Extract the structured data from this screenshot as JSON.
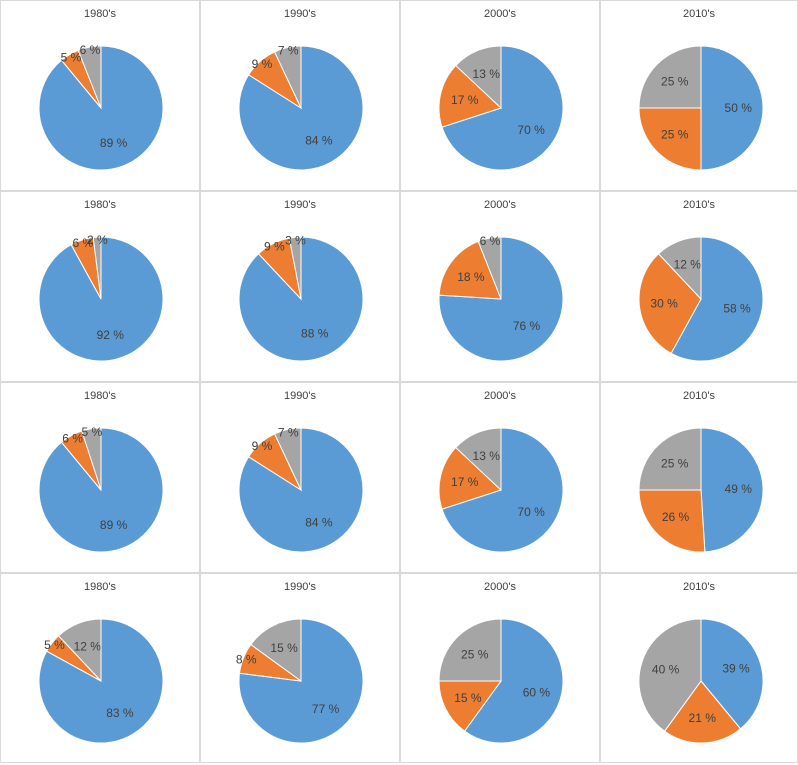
{
  "colors": {
    "blue": "#5b9bd5",
    "orange": "#ed7d31",
    "gray": "#a5a5a5"
  },
  "chart_data": [
    {
      "type": "pie",
      "title": "1980's",
      "values": [
        89,
        5,
        6
      ],
      "labels": [
        "89 %",
        "5 %",
        "6 %"
      ]
    },
    {
      "type": "pie",
      "title": "1990's",
      "values": [
        84,
        9,
        7
      ],
      "labels": [
        "84 %",
        "9 %",
        "7 %"
      ]
    },
    {
      "type": "pie",
      "title": "2000's",
      "values": [
        70,
        17,
        13
      ],
      "labels": [
        "70 %",
        "17 %",
        "13 %"
      ]
    },
    {
      "type": "pie",
      "title": "2010's",
      "values": [
        50,
        25,
        25
      ],
      "labels": [
        "50 %",
        "25 %",
        "25 %"
      ]
    },
    {
      "type": "pie",
      "title": "1980's",
      "values": [
        92,
        6,
        2
      ],
      "labels": [
        "92 %",
        "6 %",
        "2 %"
      ]
    },
    {
      "type": "pie",
      "title": "1990's",
      "values": [
        88,
        9,
        3
      ],
      "labels": [
        "88 %",
        "9 %",
        "3 %"
      ]
    },
    {
      "type": "pie",
      "title": "2000's",
      "values": [
        76,
        18,
        6
      ],
      "labels": [
        "76 %",
        "18 %",
        "6 %"
      ]
    },
    {
      "type": "pie",
      "title": "2010's",
      "values": [
        58,
        30,
        12
      ],
      "labels": [
        "58 %",
        "30 %",
        "12 %"
      ]
    },
    {
      "type": "pie",
      "title": "1980's",
      "values": [
        89,
        6,
        5
      ],
      "labels": [
        "89 %",
        "6 %",
        "5 %"
      ]
    },
    {
      "type": "pie",
      "title": "1990's",
      "values": [
        84,
        9,
        7
      ],
      "labels": [
        "84 %",
        "9 %",
        "7 %"
      ]
    },
    {
      "type": "pie",
      "title": "2000's",
      "values": [
        70,
        17,
        13
      ],
      "labels": [
        "70 %",
        "17 %",
        "13 %"
      ]
    },
    {
      "type": "pie",
      "title": "2010's",
      "values": [
        49,
        26,
        25
      ],
      "labels": [
        "49 %",
        "26 %",
        "25 %"
      ]
    },
    {
      "type": "pie",
      "title": "1980's",
      "values": [
        83,
        5,
        12
      ],
      "labels": [
        "83 %",
        "5 %",
        "12 %"
      ]
    },
    {
      "type": "pie",
      "title": "1990's",
      "values": [
        77,
        8,
        15
      ],
      "labels": [
        "77 %",
        "8 %",
        "15 %"
      ]
    },
    {
      "type": "pie",
      "title": "2000's",
      "values": [
        60,
        15,
        25
      ],
      "labels": [
        "60 %",
        "15 %",
        "25 %"
      ]
    },
    {
      "type": "pie",
      "title": "2010's",
      "values": [
        39,
        21,
        40
      ],
      "labels": [
        "39 %",
        "21 %",
        "40 %"
      ]
    }
  ]
}
